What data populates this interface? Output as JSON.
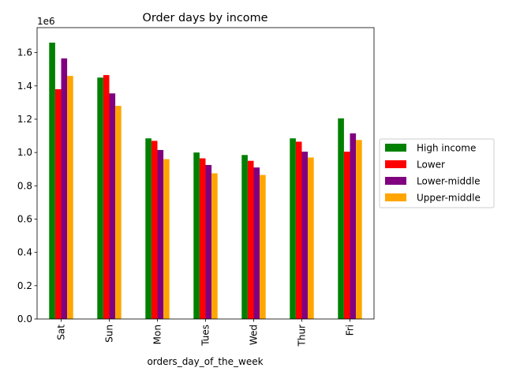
{
  "chart_data": {
    "type": "bar",
    "title": "Order days by income",
    "xlabel": "orders_day_of_the_week",
    "ylabel": "",
    "y_offset_label": "1e6",
    "ylim": [
      0,
      1.75
    ],
    "yticks": [
      "0.0",
      "0.2",
      "0.4",
      "0.6",
      "0.8",
      "1.0",
      "1.2",
      "1.4",
      "1.6"
    ],
    "categories": [
      "Sat",
      "Sun",
      "Mon",
      "Tues",
      "Wed",
      "Thur",
      "Fri"
    ],
    "legend_position": "outside-right",
    "grid": false,
    "series": [
      {
        "name": "High income",
        "color": "#008000",
        "values": [
          1.66,
          1.45,
          1.085,
          1.0,
          0.985,
          1.085,
          1.205
        ]
      },
      {
        "name": "Lower",
        "color": "#ff0000",
        "values": [
          1.38,
          1.465,
          1.07,
          0.965,
          0.95,
          1.065,
          1.005
        ]
      },
      {
        "name": "Lower-middle",
        "color": "#800080",
        "values": [
          1.565,
          1.355,
          1.015,
          0.925,
          0.91,
          1.005,
          1.115
        ]
      },
      {
        "name": "Upper-middle",
        "color": "#ffa500",
        "values": [
          1.46,
          1.28,
          0.96,
          0.875,
          0.865,
          0.97,
          1.075
        ]
      }
    ]
  }
}
